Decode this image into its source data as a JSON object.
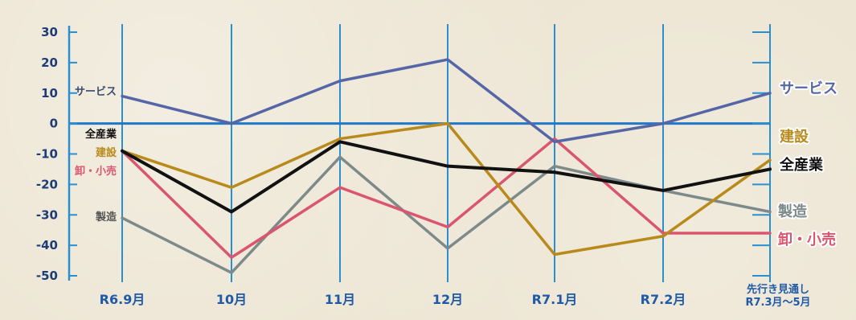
{
  "chart_data": {
    "type": "line",
    "categories": [
      "R6.9月",
      "10月",
      "11月",
      "12月",
      "R7.1月",
      "R7.2月",
      "先行き見通し R7.3月〜5月"
    ],
    "category_lines": [
      [
        "R6.9月"
      ],
      [
        "10月"
      ],
      [
        "11月"
      ],
      [
        "12月"
      ],
      [
        "R7.1月"
      ],
      [
        "R7.2月"
      ],
      [
        "先行き見通し",
        "R7.3月〜5月"
      ]
    ],
    "ylim": [
      -50,
      30
    ],
    "yticks": [
      30,
      20,
      10,
      0,
      -10,
      -20,
      -30,
      -40,
      -50
    ],
    "ytick_labels": [
      "30",
      "20",
      "10",
      "0",
      "-10",
      "-20",
      "-30",
      "-40",
      "-50"
    ],
    "grid": "vertical",
    "series": [
      {
        "name": "サービス",
        "color": "#5566a8",
        "values": [
          9,
          0,
          14,
          21,
          -6,
          0,
          10
        ]
      },
      {
        "name": "建設",
        "color": "#b88a1c",
        "values": [
          -9,
          -21,
          -5,
          0,
          -43,
          -37,
          -12
        ]
      },
      {
        "name": "全産業",
        "color": "#111111",
        "values": [
          -9,
          -29,
          -6,
          -14,
          -16,
          -22,
          -15
        ]
      },
      {
        "name": "卸・小売",
        "color": "#d9566e",
        "values": [
          -9,
          -44,
          -21,
          -34,
          -5,
          -36,
          -36
        ]
      },
      {
        "name": "製造",
        "color": "#7d8a8a",
        "values": [
          -31,
          -49,
          -11,
          -41,
          -14,
          -22,
          -29
        ]
      }
    ],
    "left_labels": [
      {
        "series": "サービス",
        "text": "サービス"
      },
      {
        "series": "全産業",
        "text": "全産業"
      },
      {
        "series": "建設",
        "text": "建設"
      },
      {
        "series": "卸・小売",
        "text": "卸・小売"
      },
      {
        "series": "製造",
        "text": "製造"
      }
    ],
    "right_labels": [
      {
        "series": "サービス",
        "text": "サービス"
      },
      {
        "series": "建設",
        "text": "建設"
      },
      {
        "series": "全産業",
        "text": "全産業"
      },
      {
        "series": "製造",
        "text": "製造"
      },
      {
        "series": "卸・小売",
        "text": "卸・小売"
      }
    ]
  }
}
